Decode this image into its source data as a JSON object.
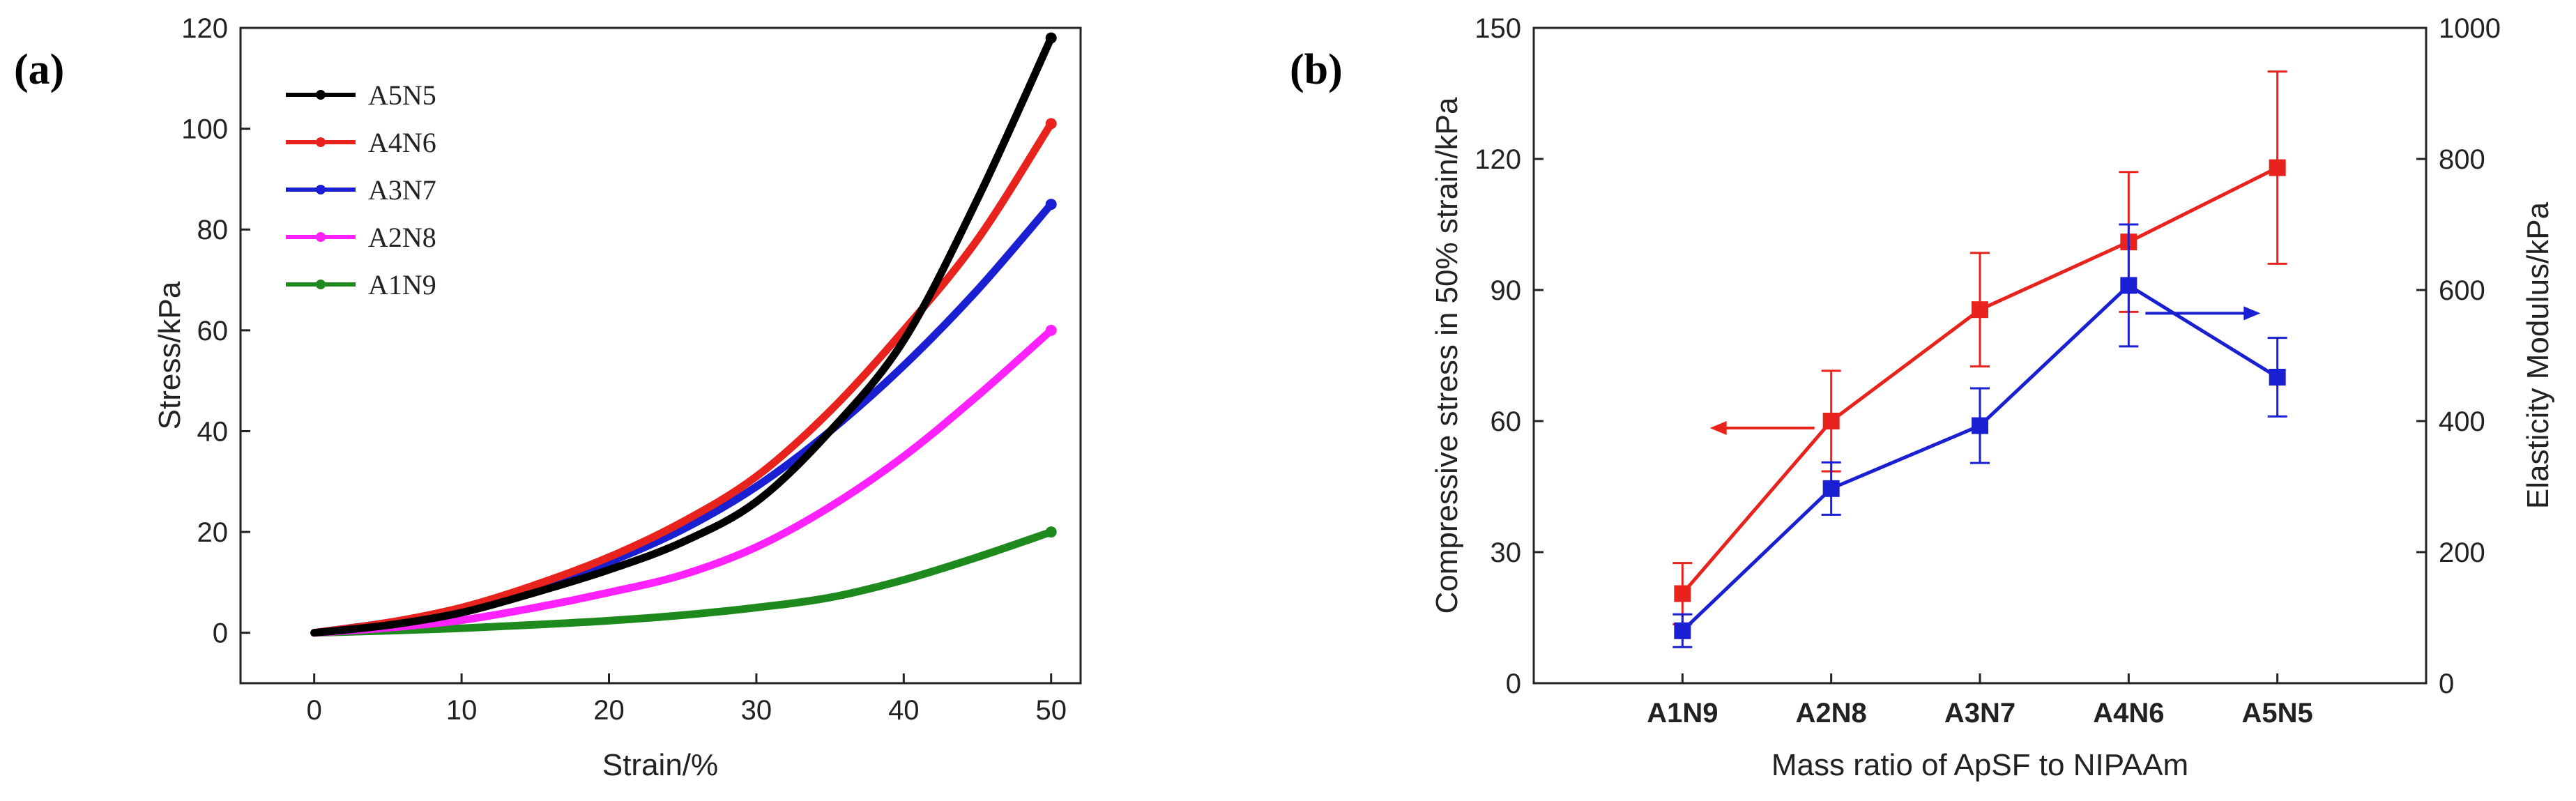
{
  "chart_data": [
    {
      "panel": "(a)",
      "type": "line",
      "xlabel": "Strain/%",
      "ylabel": "Stress/kPa",
      "xlim": [
        -5,
        52
      ],
      "ylim": [
        -10,
        120
      ],
      "xticks": [
        0,
        10,
        20,
        30,
        40,
        50
      ],
      "yticks": [
        0,
        20,
        40,
        60,
        80,
        100,
        120
      ],
      "legend_position": "top-left",
      "series": [
        {
          "name": "A5N5",
          "color": "#000000",
          "x": [
            0,
            5,
            10,
            15,
            20,
            25,
            30,
            35,
            40,
            45,
            50
          ],
          "values": [
            0,
            1.5,
            4,
            8,
            12.5,
            18,
            26,
            40,
            58,
            86,
            118
          ]
        },
        {
          "name": "A4N6",
          "color": "#e8231d",
          "x": [
            0,
            5,
            10,
            15,
            20,
            25,
            30,
            35,
            40,
            45,
            50
          ],
          "values": [
            0,
            2,
            5,
            9.5,
            15,
            22,
            31,
            44,
            60,
            78,
            101
          ]
        },
        {
          "name": "A3N7",
          "color": "#1a1fd1",
          "x": [
            0,
            5,
            10,
            15,
            20,
            25,
            30,
            35,
            40,
            45,
            50
          ],
          "values": [
            0,
            2,
            4.5,
            8.5,
            14,
            20.5,
            29,
            40,
            53,
            68,
            85
          ]
        },
        {
          "name": "A2N8",
          "color": "#ff22ff",
          "x": [
            0,
            5,
            10,
            15,
            20,
            25,
            30,
            35,
            40,
            45,
            50
          ],
          "values": [
            0,
            1,
            2.5,
            5,
            8,
            11.5,
            17,
            25,
            35,
            47,
            60
          ]
        },
        {
          "name": "A1N9",
          "color": "#1e8a1e",
          "x": [
            0,
            5,
            10,
            15,
            20,
            25,
            30,
            35,
            40,
            45,
            50
          ],
          "values": [
            0,
            0.4,
            0.9,
            1.6,
            2.4,
            3.5,
            5,
            7,
            10.5,
            15,
            20
          ]
        }
      ]
    },
    {
      "panel": "(b)",
      "type": "line",
      "xlabel": "Mass ratio of ApSF to NIPAAm",
      "ylabel": "Compressive stress in 50% strain/kPa",
      "ylabel_right": "Elasticity Modulus/kPa",
      "categories": [
        "A1N9",
        "A2N8",
        "A3N7",
        "A4N6",
        "A5N5"
      ],
      "ylim": [
        0,
        150
      ],
      "yticks": [
        0,
        30,
        60,
        90,
        120,
        150
      ],
      "ylim_right": [
        0,
        1000
      ],
      "yticks_right": [
        0,
        200,
        400,
        600,
        800,
        1000
      ],
      "series": [
        {
          "name": "Compressive stress in 50% strain",
          "axis": "left",
          "color": "#e8231d",
          "values": [
            20.5,
            60,
            85.5,
            101,
            118
          ],
          "errors": [
            7,
            11.5,
            13,
            16,
            22
          ]
        },
        {
          "name": "Elasticity Modulus",
          "axis": "right",
          "color": "#1a1fd1",
          "values": [
            80,
            297,
            393,
            607,
            467
          ],
          "errors": [
            25,
            40,
            57,
            93,
            60
          ]
        }
      ],
      "annotations": [
        {
          "text": "left-pointing red arrow",
          "points_to": "left axis",
          "color": "#e8231d"
        },
        {
          "text": "right-pointing blue arrow",
          "points_to": "right axis",
          "color": "#1a1fd1"
        }
      ]
    }
  ]
}
